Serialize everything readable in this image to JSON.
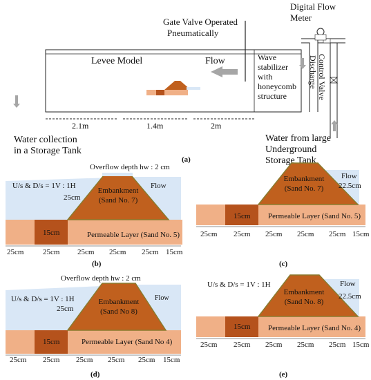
{
  "panel_a": {
    "caption": "(a)",
    "gate_valve": [
      "Gate Valve Operated",
      "Pneumatically"
    ],
    "flow_meter": [
      "Digital Flow",
      "Meter"
    ],
    "levee_model": "Levee Model",
    "flow": "Flow",
    "wave_stabilizer": [
      "Wave",
      "stabilizer",
      "with",
      "honeycomb",
      "structure"
    ],
    "discharge_valve": [
      "Discharge",
      "Control Valve"
    ],
    "dims": [
      "2.1m",
      "1.4m",
      "2m"
    ],
    "water_collection": [
      "Water collection",
      "in a Storage Tank"
    ],
    "water_source": [
      "Water from large",
      "Underground",
      "Storage Tank"
    ]
  },
  "panel_b": {
    "caption": "(b)",
    "overflow": "Overflow depth hw  : 2 cm",
    "slope": "U/s & D/s = 1V : 1H",
    "height": "25cm",
    "embankment": [
      "Embankment",
      "(Sand No. 7)"
    ],
    "flow": "Flow",
    "layer_thickness": "15cm",
    "permeable": "Permeable Layer (Sand No. 5)",
    "dims": [
      "25cm",
      "25cm",
      "25cm",
      "25cm",
      "25cm",
      "15cm"
    ]
  },
  "panel_c": {
    "caption": "(c)",
    "embankment": [
      "Embankment",
      "(Sand No. 7)"
    ],
    "flow": "Flow",
    "depth": "22.5cm",
    "layer_thickness": "15cm",
    "permeable": "Permeable Layer (Sand No. 5)",
    "dims": [
      "25cm",
      "25cm",
      "25cm",
      "25cm",
      "25cm",
      "15cm"
    ]
  },
  "panel_d": {
    "caption": "(d)",
    "overflow": "Overflow depth hw  : 2 cm",
    "slope": "U/s & D/s = 1V : 1H",
    "height": "25cm",
    "embankment": [
      "Embankment",
      "(Sand No 8)"
    ],
    "flow": "Flow",
    "layer_thickness": "15cm",
    "permeable": "Permeable Layer (Sand No 4)",
    "dims": [
      "25cm",
      "25cm",
      "25cm",
      "25cm",
      "25cm",
      "15cm"
    ]
  },
  "panel_e": {
    "caption": "(e)",
    "slope": "U/s & D/s = 1V : 1H",
    "embankment": [
      "Embankment",
      "(Sand No. 8)"
    ],
    "flow": "Flow",
    "depth": "22.5cm",
    "layer_thickness": "15cm",
    "permeable": "Permeable Layer (Sand No. 4)",
    "dims": [
      "25cm",
      "25cm",
      "25cm",
      "25cm",
      "25cm",
      "15cm"
    ]
  },
  "colors": {
    "water": "#d9e7f6",
    "embankment": "#c0601e",
    "embankment_edge": "#8a7a2e",
    "permeable": "#f0b087",
    "permeable_dark": "#b5521c",
    "arrow": "#a6a6a6"
  }
}
